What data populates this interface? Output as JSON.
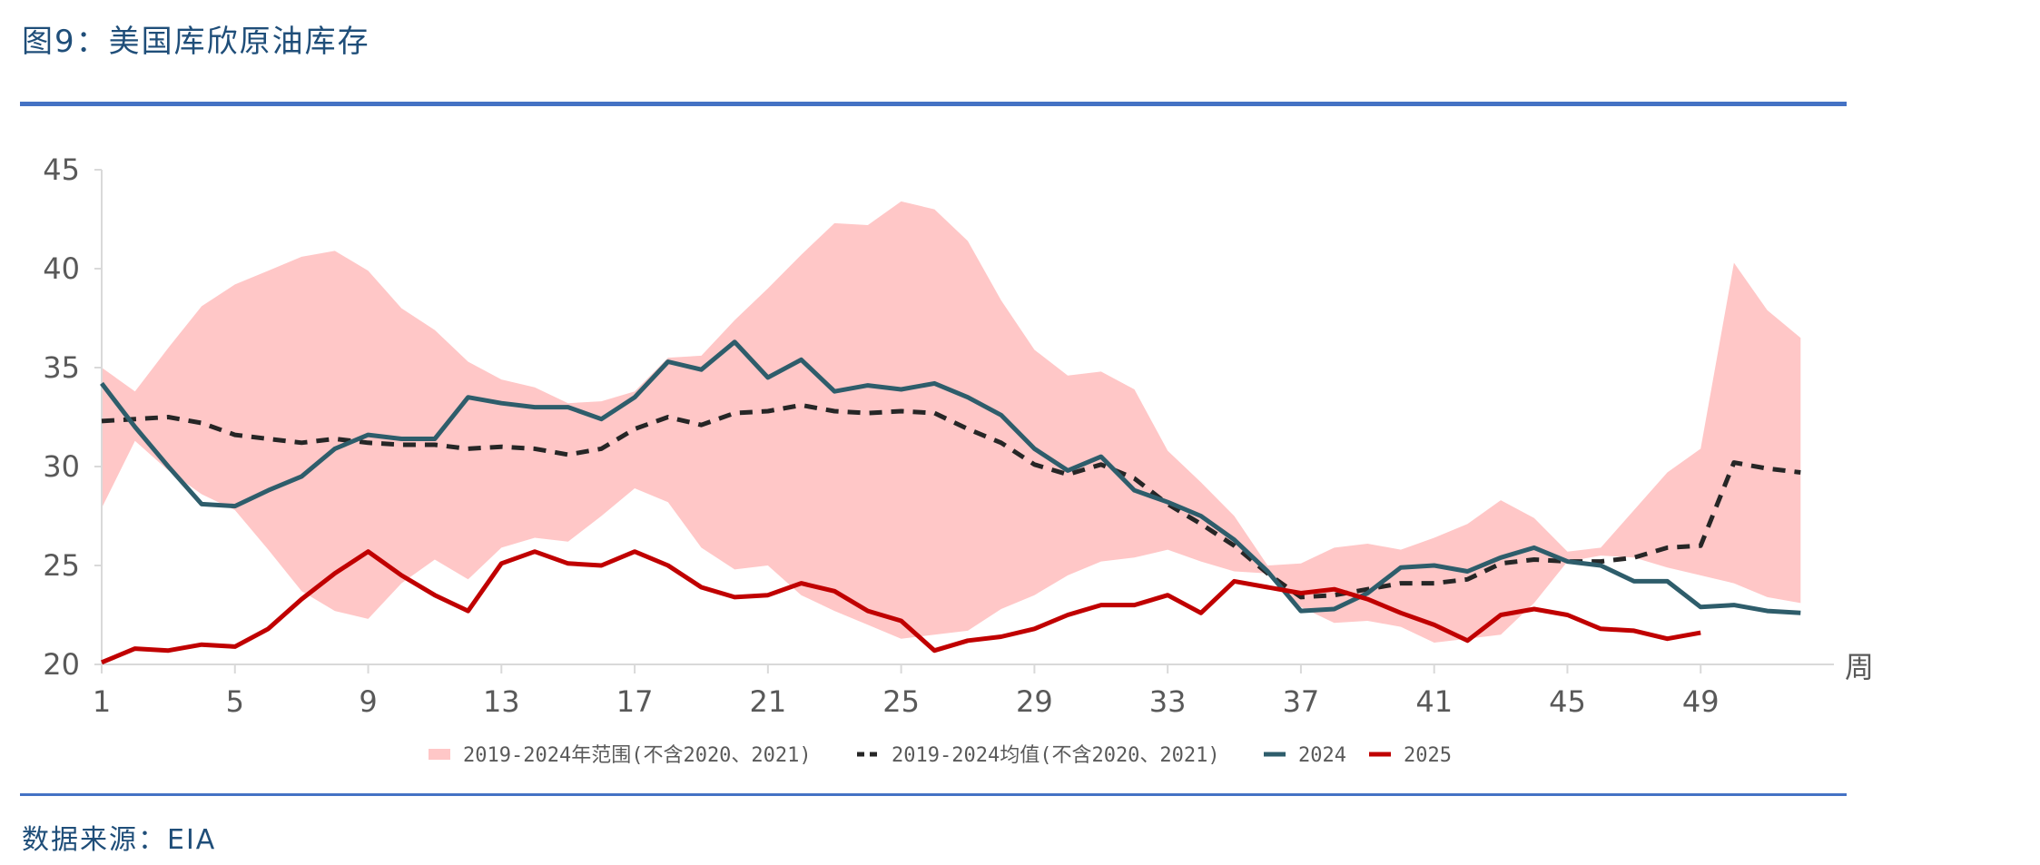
{
  "header": {
    "title": "图9：美国库欣原油库存"
  },
  "footer": {
    "source": "数据来源：EIA"
  },
  "colors": {
    "range": "#ffc7c7",
    "mean": "#262626",
    "s2024": "#2e5d6b",
    "s2025": "#c00000",
    "rule": "#4472c4",
    "title": "#1f4e79"
  },
  "chart_data": {
    "type": "line",
    "x_unit_label": "周",
    "ylim": [
      20,
      45
    ],
    "yticks": [
      20,
      25,
      30,
      35,
      40,
      45
    ],
    "xlim": [
      1,
      53
    ],
    "xticks": [
      1,
      5,
      9,
      13,
      17,
      21,
      25,
      29,
      33,
      37,
      41,
      45,
      49
    ],
    "legend_position": "bottom",
    "weeks": [
      1,
      2,
      3,
      4,
      5,
      6,
      7,
      8,
      9,
      10,
      11,
      12,
      13,
      14,
      15,
      16,
      17,
      18,
      19,
      20,
      21,
      22,
      23,
      24,
      25,
      26,
      27,
      28,
      29,
      30,
      31,
      32,
      33,
      34,
      35,
      36,
      37,
      38,
      39,
      40,
      41,
      42,
      43,
      44,
      45,
      46,
      47,
      48,
      49,
      50,
      51,
      52,
      53
    ],
    "range": {
      "name": "2019-2024年范围(不含2020、2021)",
      "upper": [
        35.0,
        33.8,
        36.0,
        38.1,
        39.2,
        39.9,
        40.6,
        40.9,
        39.9,
        38.0,
        36.9,
        35.3,
        34.4,
        34.0,
        33.2,
        33.3,
        33.8,
        35.5,
        35.6,
        37.4,
        39.0,
        40.7,
        42.3,
        42.2,
        43.4,
        43.0,
        41.4,
        38.4,
        35.9,
        34.6,
        34.8,
        33.9,
        30.8,
        29.2,
        27.5,
        25.0,
        25.1,
        25.9,
        26.1,
        25.8,
        26.4,
        27.1,
        28.3,
        27.4,
        25.7,
        25.9,
        27.8,
        29.7,
        30.9,
        40.3,
        37.9,
        36.5,
        null
      ],
      "lower": [
        27.9,
        31.3,
        29.8,
        28.6,
        27.8,
        25.8,
        23.7,
        22.7,
        22.3,
        24.1,
        25.3,
        24.3,
        25.9,
        26.4,
        26.2,
        27.5,
        28.9,
        28.2,
        25.9,
        24.8,
        25.0,
        23.5,
        22.7,
        22.0,
        21.3,
        21.5,
        21.7,
        22.8,
        23.5,
        24.5,
        25.2,
        25.4,
        25.8,
        25.2,
        24.7,
        24.6,
        22.9,
        22.1,
        22.2,
        21.9,
        21.1,
        21.3,
        21.5,
        23.1,
        25.2,
        25.5,
        25.4,
        24.9,
        24.5,
        24.1,
        23.4,
        23.1,
        null
      ]
    },
    "series": [
      {
        "name": "2019-2024均值(不含2020、2021)",
        "style": "dashed",
        "values": [
          32.3,
          32.4,
          32.5,
          32.2,
          31.6,
          31.4,
          31.2,
          31.4,
          31.2,
          31.1,
          31.1,
          30.9,
          31.0,
          30.9,
          30.6,
          30.9,
          31.9,
          32.5,
          32.1,
          32.7,
          32.8,
          33.1,
          32.8,
          32.7,
          32.8,
          32.7,
          31.9,
          31.2,
          30.1,
          29.6,
          30.1,
          29.4,
          28.1,
          27.1,
          26.0,
          24.6,
          23.4,
          23.5,
          23.8,
          24.1,
          24.1,
          24.3,
          25.1,
          25.3,
          25.2,
          25.2,
          25.4,
          25.9,
          26.0,
          30.2,
          29.9,
          29.7,
          null
        ]
      },
      {
        "name": "2024",
        "style": "solid",
        "values": [
          34.2,
          32.0,
          30.0,
          28.1,
          28.0,
          28.8,
          29.5,
          30.9,
          31.6,
          31.4,
          31.4,
          33.5,
          33.2,
          33.0,
          33.0,
          32.4,
          33.5,
          35.3,
          34.9,
          36.3,
          34.5,
          35.4,
          33.8,
          34.1,
          33.9,
          34.2,
          33.5,
          32.6,
          30.9,
          29.8,
          30.5,
          28.8,
          28.2,
          27.5,
          26.3,
          24.7,
          22.7,
          22.8,
          23.6,
          24.9,
          25.0,
          24.7,
          25.4,
          25.9,
          25.2,
          25.0,
          24.2,
          24.2,
          22.9,
          23.0,
          22.7,
          22.6,
          null
        ]
      },
      {
        "name": "2025",
        "style": "solid",
        "values": [
          20.1,
          20.8,
          20.7,
          21.0,
          20.9,
          21.8,
          23.3,
          24.6,
          25.7,
          24.5,
          23.5,
          22.7,
          25.1,
          25.7,
          25.1,
          25.0,
          25.7,
          25.0,
          23.9,
          23.4,
          23.5,
          24.1,
          23.7,
          22.7,
          22.2,
          20.7,
          21.2,
          21.4,
          21.8,
          22.5,
          23.0,
          23.0,
          23.5,
          22.6,
          24.2,
          23.9,
          23.6,
          23.8,
          23.3,
          22.6,
          22.0,
          21.2,
          22.5,
          22.8,
          22.5,
          21.8,
          21.7,
          21.3,
          21.6,
          null,
          null,
          null,
          null
        ]
      }
    ]
  }
}
